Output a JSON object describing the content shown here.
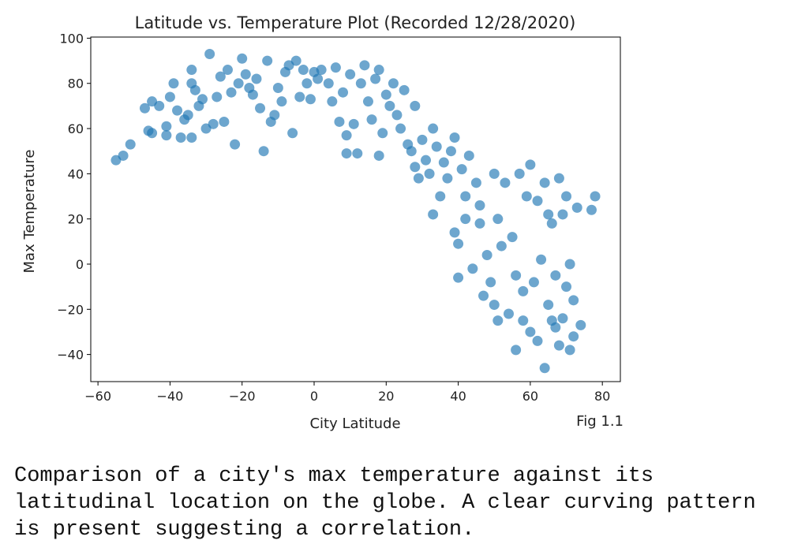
{
  "chart_data": {
    "type": "scatter",
    "title": "Latitude vs. Temperature Plot (Recorded 12/28/2020)",
    "x_label": "City Latitude",
    "y_label": "Max Temperature",
    "annotation": "Fig 1.1",
    "color": "#1f77b4",
    "xlim": [
      -62,
      85
    ],
    "ylim": [
      -52,
      100.5
    ],
    "xticks": [
      {
        "value": -60,
        "label": "−60"
      },
      {
        "value": -40,
        "label": "−40"
      },
      {
        "value": -20,
        "label": "−20"
      },
      0,
      20,
      40,
      60,
      80
    ],
    "yticks": [
      {
        "value": -40,
        "label": "−40"
      },
      {
        "value": -20,
        "label": "−20"
      },
      0,
      20,
      40,
      60,
      80,
      100
    ],
    "x": [
      -55,
      -53,
      -51,
      -47,
      -46,
      -45,
      -45,
      -43,
      -41,
      -41,
      -40,
      -39,
      -38,
      -37,
      -36,
      -35,
      -34,
      -34,
      -34,
      -33,
      -32,
      -31,
      -30,
      -29,
      -28,
      -27,
      -26,
      -25,
      -24,
      -23,
      -22,
      -21,
      -20,
      -19,
      -18,
      -17,
      -16,
      -15,
      -14,
      -13,
      -12,
      -11,
      -10,
      -9,
      -8,
      -7,
      -6,
      -5,
      -4,
      -3,
      -2,
      -1,
      0,
      1,
      2,
      4,
      5,
      6,
      7,
      8,
      9,
      9,
      10,
      11,
      12,
      13,
      14,
      15,
      16,
      17,
      18,
      18,
      19,
      20,
      21,
      22,
      23,
      24,
      25,
      26,
      27,
      28,
      28,
      29,
      30,
      31,
      32,
      33,
      33,
      34,
      35,
      36,
      37,
      38,
      39,
      39,
      40,
      40,
      41,
      42,
      42,
      43,
      44,
      45,
      46,
      46,
      47,
      48,
      49,
      50,
      50,
      51,
      51,
      52,
      53,
      54,
      55,
      56,
      56,
      57,
      58,
      58,
      59,
      60,
      60,
      61,
      62,
      62,
      63,
      64,
      64,
      65,
      65,
      66,
      66,
      67,
      67,
      68,
      68,
      69,
      69,
      70,
      70,
      71,
      71,
      72,
      72,
      73,
      74,
      77,
      78
    ],
    "values": [
      46,
      48,
      53,
      69,
      59,
      72,
      58,
      70,
      61,
      57,
      74,
      80,
      68,
      56,
      64,
      66,
      86,
      80,
      56,
      77,
      70,
      73,
      60,
      93,
      62,
      74,
      83,
      63,
      86,
      76,
      53,
      80,
      91,
      84,
      78,
      75,
      82,
      69,
      50,
      90,
      63,
      66,
      78,
      72,
      85,
      88,
      58,
      90,
      74,
      86,
      80,
      73,
      85,
      82,
      86,
      80,
      72,
      87,
      63,
      76,
      57,
      49,
      84,
      62,
      49,
      80,
      88,
      72,
      64,
      82,
      86,
      48,
      58,
      75,
      70,
      80,
      66,
      60,
      77,
      53,
      50,
      70,
      43,
      38,
      55,
      46,
      40,
      22,
      60,
      52,
      30,
      45,
      38,
      50,
      14,
      56,
      9,
      -6,
      42,
      30,
      20,
      48,
      -2,
      36,
      18,
      26,
      -14,
      4,
      -8,
      -18,
      40,
      20,
      -25,
      8,
      36,
      -22,
      12,
      -5,
      -38,
      40,
      -12,
      -25,
      30,
      -30,
      44,
      -8,
      -34,
      28,
      2,
      -46,
      36,
      -18,
      22,
      18,
      -25,
      -28,
      -5,
      -36,
      38,
      -24,
      22,
      -10,
      30,
      -38,
      0,
      -16,
      -32,
      25,
      -27,
      24,
      30
    ]
  },
  "caption": [
    "Comparison of a city's max temperature against its",
    "latitudinal location on the globe. A clear curving pattern",
    "is present suggesting a correlation."
  ]
}
